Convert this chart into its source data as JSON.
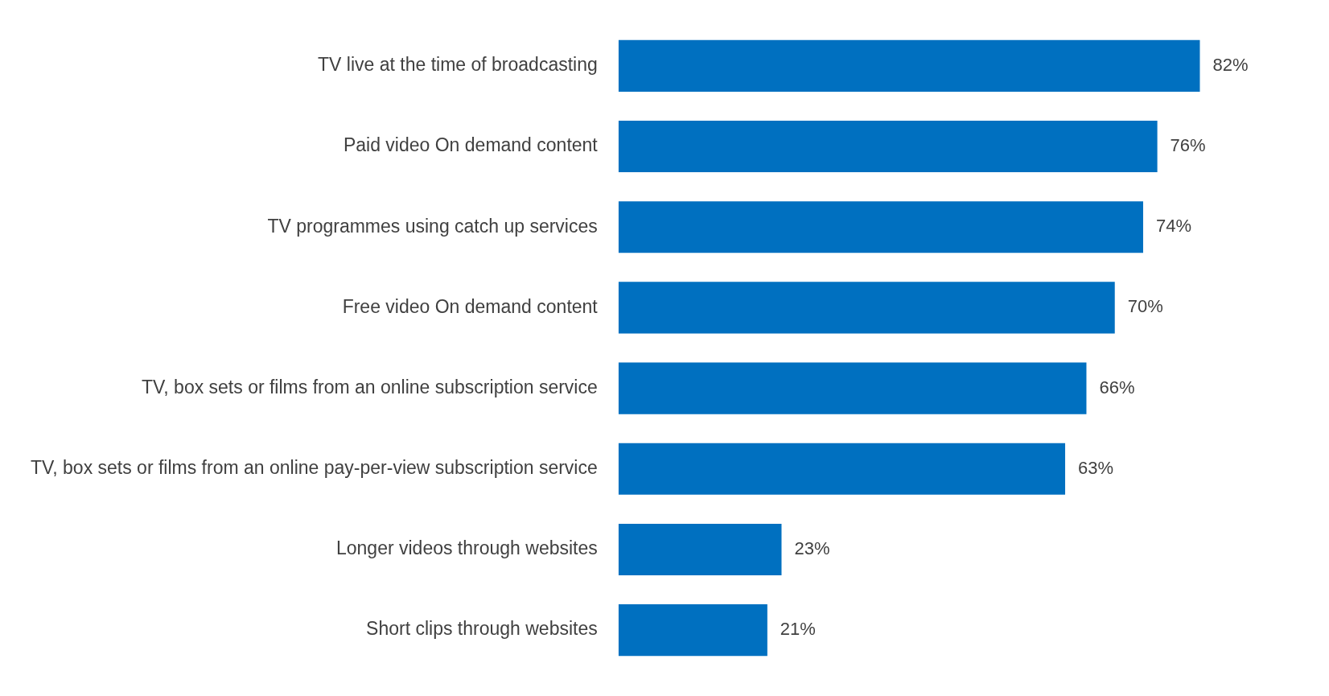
{
  "chart_data": {
    "type": "bar",
    "orientation": "horizontal",
    "categories": [
      "TV live at the time of broadcasting",
      "Paid video On demand content",
      "TV programmes using catch up services",
      "Free video On demand content",
      "TV, box sets or films from an online subscription service",
      "TV, box sets or films from an online pay-per-view subscription service",
      "Longer videos through websites",
      "Short clips through websites"
    ],
    "values": [
      82,
      76,
      74,
      70,
      66,
      63,
      23,
      21
    ],
    "value_labels": [
      "82%",
      "76%",
      "74%",
      "70%",
      "66%",
      "63%",
      "23%",
      "21%"
    ],
    "color": "#0070c0",
    "grid": false,
    "legend": false,
    "tick_labels": "y"
  }
}
